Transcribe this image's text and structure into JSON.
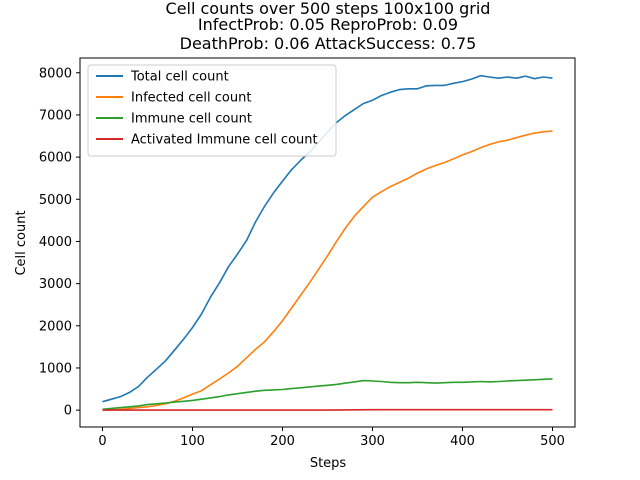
{
  "chart_data": {
    "type": "line",
    "title_lines": [
      "Cell counts over 500 steps 100x100 grid",
      "InfectProb: 0.05 ReproProb: 0.09",
      "DeathProb: 0.06 AttackSuccess: 0.75"
    ],
    "xlabel": "Steps",
    "ylabel": "Cell count",
    "xlim": [
      -25,
      525
    ],
    "ylim": [
      -400,
      8350
    ],
    "xticks": [
      0,
      100,
      200,
      300,
      400,
      500
    ],
    "yticks": [
      0,
      1000,
      2000,
      3000,
      4000,
      5000,
      6000,
      7000,
      8000
    ],
    "legend_position": "upper-left",
    "grid": false,
    "series": [
      {
        "name": "Total cell count",
        "color": "#1f77b4",
        "x": [
          0,
          10,
          20,
          30,
          40,
          50,
          60,
          70,
          80,
          90,
          100,
          110,
          120,
          130,
          140,
          150,
          160,
          170,
          180,
          190,
          200,
          210,
          220,
          230,
          240,
          250,
          260,
          270,
          280,
          290,
          300,
          310,
          320,
          330,
          340,
          350,
          360,
          370,
          380,
          390,
          400,
          410,
          420,
          430,
          440,
          450,
          460,
          470,
          480,
          490,
          500
        ],
        "values": [
          200,
          260,
          320,
          420,
          560,
          780,
          970,
          1170,
          1420,
          1680,
          1960,
          2280,
          2680,
          3020,
          3400,
          3700,
          4020,
          4460,
          4830,
          5150,
          5430,
          5700,
          5920,
          6120,
          6350,
          6600,
          6820,
          6990,
          7130,
          7270,
          7350,
          7460,
          7540,
          7600,
          7620,
          7620,
          7690,
          7700,
          7700,
          7750,
          7790,
          7850,
          7930,
          7900,
          7870,
          7900,
          7870,
          7920,
          7860,
          7900,
          7870
        ]
      },
      {
        "name": "Infected cell count",
        "color": "#ff7f0e",
        "x": [
          0,
          10,
          20,
          30,
          40,
          50,
          60,
          70,
          80,
          90,
          100,
          110,
          120,
          130,
          140,
          150,
          160,
          170,
          180,
          190,
          200,
          210,
          220,
          230,
          240,
          250,
          260,
          270,
          280,
          290,
          300,
          310,
          320,
          330,
          340,
          350,
          360,
          370,
          380,
          390,
          400,
          410,
          420,
          430,
          440,
          450,
          460,
          470,
          480,
          490,
          500
        ],
        "values": [
          0,
          10,
          20,
          40,
          60,
          80,
          110,
          150,
          210,
          290,
          380,
          460,
          600,
          740,
          880,
          1040,
          1240,
          1440,
          1620,
          1860,
          2120,
          2420,
          2720,
          3020,
          3340,
          3660,
          4000,
          4320,
          4600,
          4830,
          5050,
          5180,
          5300,
          5400,
          5500,
          5620,
          5720,
          5800,
          5870,
          5960,
          6050,
          6130,
          6220,
          6300,
          6360,
          6400,
          6460,
          6520,
          6570,
          6600,
          6620
        ]
      },
      {
        "name": "Immune cell count",
        "color": "#2ca02c",
        "x": [
          0,
          10,
          20,
          30,
          40,
          50,
          60,
          70,
          80,
          90,
          100,
          110,
          120,
          130,
          140,
          150,
          160,
          170,
          180,
          190,
          200,
          210,
          220,
          230,
          240,
          250,
          260,
          270,
          280,
          290,
          300,
          310,
          320,
          330,
          340,
          350,
          360,
          370,
          380,
          390,
          400,
          410,
          420,
          430,
          440,
          450,
          460,
          470,
          480,
          490,
          500
        ],
        "values": [
          20,
          40,
          60,
          80,
          100,
          130,
          150,
          170,
          190,
          210,
          230,
          260,
          290,
          320,
          360,
          390,
          420,
          450,
          470,
          480,
          490,
          510,
          530,
          550,
          570,
          590,
          610,
          640,
          670,
          700,
          690,
          680,
          660,
          650,
          650,
          660,
          650,
          640,
          650,
          660,
          660,
          670,
          680,
          670,
          680,
          690,
          700,
          710,
          720,
          730,
          740
        ]
      },
      {
        "name": "Activated Immune cell count",
        "color": "#d62728",
        "x": [
          0,
          50,
          100,
          150,
          200,
          250,
          300,
          350,
          400,
          450,
          500
        ],
        "values": [
          0,
          0,
          0,
          0,
          0,
          0,
          10,
          10,
          10,
          10,
          10
        ]
      }
    ]
  }
}
